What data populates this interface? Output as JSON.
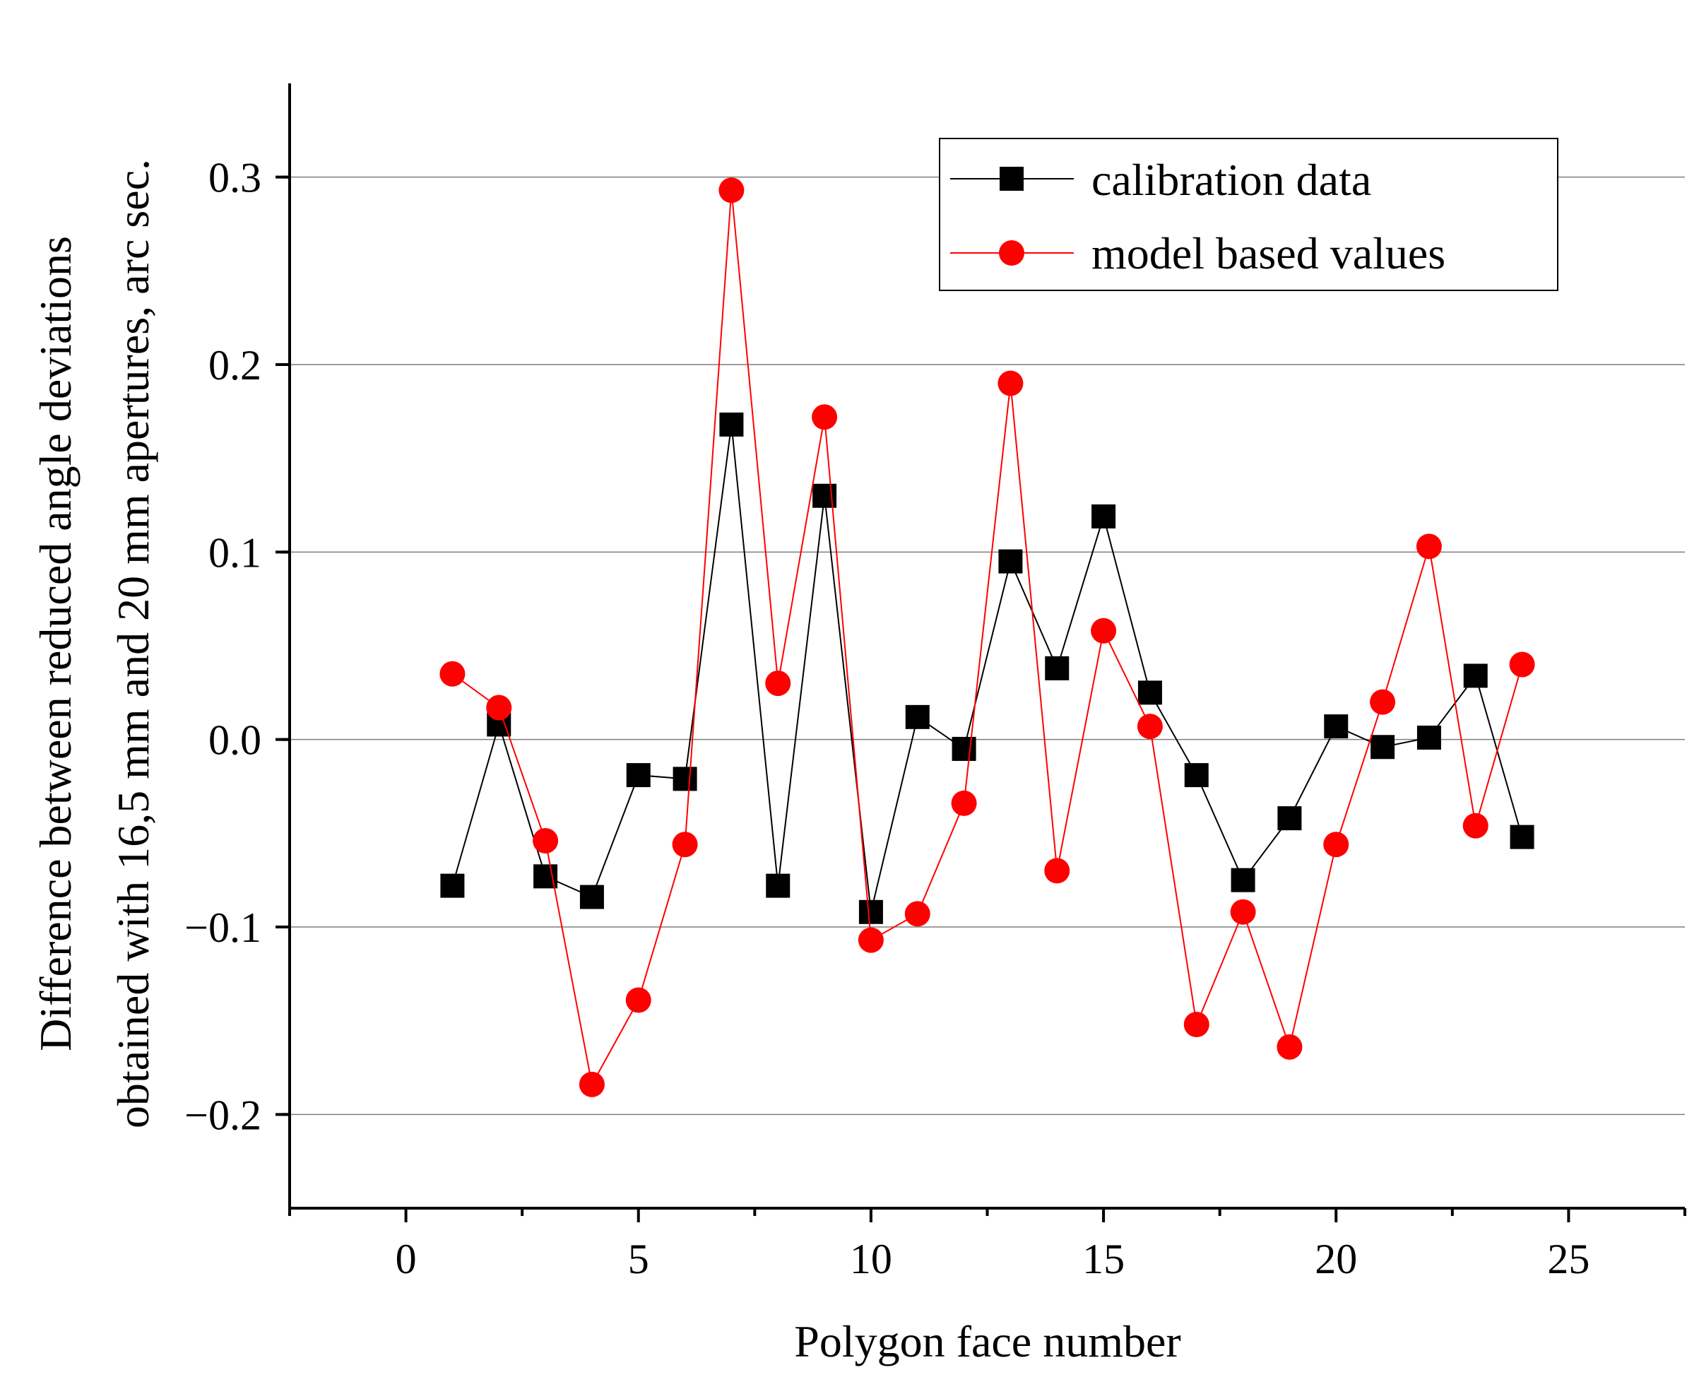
{
  "chart_data": {
    "type": "line",
    "title": "",
    "xlabel": "Polygon face number",
    "ylabel_line1": "Difference between reduced angle deviations",
    "ylabel_line2": "obtained with 16,5 mm and 20 mm apertures, arc sec.",
    "xlim": [
      -2.5,
      27.5
    ],
    "ylim": [
      -0.25,
      0.35
    ],
    "x_ticks": [
      0,
      5,
      10,
      15,
      20,
      25
    ],
    "x_tick_labels": [
      "0",
      "5",
      "10",
      "15",
      "20",
      "25"
    ],
    "y_ticks": [
      -0.2,
      -0.1,
      0.0,
      0.1,
      0.2,
      0.3
    ],
    "y_tick_labels": [
      "−0.2",
      "−0.1",
      "0.0",
      "0.1",
      "0.2",
      "0.3"
    ],
    "grid": "horizontal",
    "legend_position": "top-right",
    "x": [
      1,
      2,
      3,
      4,
      5,
      6,
      7,
      8,
      9,
      10,
      11,
      12,
      13,
      14,
      15,
      16,
      17,
      18,
      19,
      20,
      21,
      22,
      23,
      24
    ],
    "series": [
      {
        "name": "calibration data",
        "color": "#000000",
        "marker": "square",
        "values": [
          -0.078,
          0.008,
          -0.073,
          -0.084,
          -0.019,
          -0.021,
          0.168,
          -0.078,
          0.13,
          -0.092,
          0.012,
          -0.005,
          0.095,
          0.038,
          0.119,
          0.025,
          -0.019,
          -0.075,
          -0.042,
          0.007,
          -0.004,
          0.001,
          0.034,
          -0.052
        ]
      },
      {
        "name": "model based values",
        "color": "#ff0000",
        "marker": "circle",
        "values": [
          0.035,
          0.017,
          -0.054,
          -0.184,
          -0.139,
          -0.056,
          0.293,
          0.03,
          0.172,
          -0.107,
          -0.093,
          -0.034,
          0.19,
          -0.07,
          0.058,
          0.007,
          -0.152,
          -0.092,
          -0.164,
          -0.056,
          0.02,
          0.103,
          -0.046,
          0.04
        ]
      }
    ]
  }
}
